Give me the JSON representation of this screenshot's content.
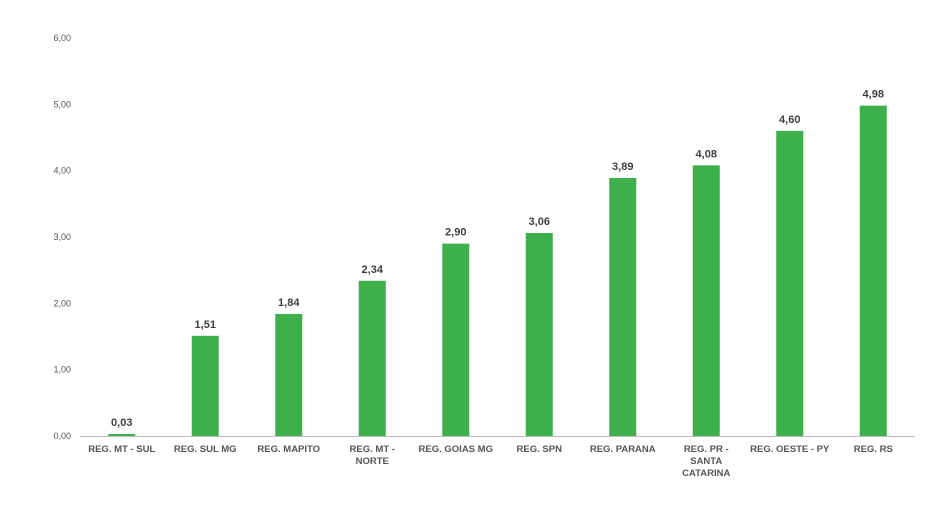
{
  "chart_data": {
    "type": "bar",
    "categories": [
      [
        "REG. MT - SUL"
      ],
      [
        "REG. SUL MG"
      ],
      [
        "REG. MAPITO"
      ],
      [
        "REG. MT -",
        "NORTE"
      ],
      [
        "REG. GOIAS MG"
      ],
      [
        "REG. SPN"
      ],
      [
        "REG. PARANA"
      ],
      [
        "REG. PR -",
        "SANTA",
        "CATARINA"
      ],
      [
        "REG. OESTE - PY"
      ],
      [
        "REG. RS"
      ]
    ],
    "values": [
      0.03,
      1.51,
      1.84,
      2.34,
      2.9,
      3.06,
      3.89,
      4.08,
      4.6,
      4.98
    ],
    "value_labels": [
      "0,03",
      "1,51",
      "1,84",
      "2,34",
      "2,90",
      "3,06",
      "3,89",
      "4,08",
      "4,60",
      "4,98"
    ],
    "y_ticks": [
      0,
      1,
      2,
      3,
      4,
      5,
      6
    ],
    "y_tick_labels": [
      "0,00",
      "1,00",
      "2,00",
      "3,00",
      "4,00",
      "5,00",
      "6,00"
    ],
    "ylim": [
      0,
      6
    ],
    "title": "",
    "xlabel": "",
    "ylabel": "",
    "grid": false,
    "legend": "none",
    "bar_color": "#3daf4b"
  }
}
